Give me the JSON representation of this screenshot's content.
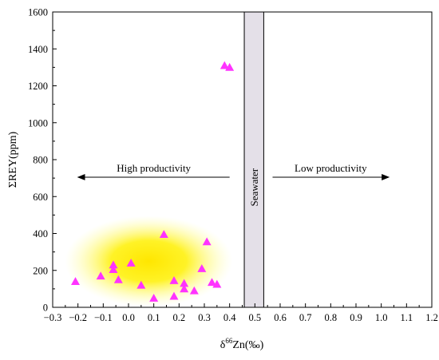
{
  "chart_data": {
    "type": "scatter",
    "title": "",
    "xlabel_prefix": "δ",
    "xlabel_sup": "66",
    "xlabel_main": "Zn(‰)",
    "ylabel": "ΣREY(ppm)",
    "xlim": [
      -0.3,
      1.2
    ],
    "ylim": [
      0,
      1600
    ],
    "x_ticks": [
      -0.3,
      -0.2,
      -0.1,
      0.0,
      0.1,
      0.2,
      0.3,
      0.4,
      0.5,
      0.6,
      0.7,
      0.8,
      0.9,
      1.0,
      1.1,
      1.2
    ],
    "x_tick_labels": [
      "−0.3",
      "−0.2",
      "−0.1",
      "0.0",
      "0.1",
      "0.2",
      "0.3",
      "0.4",
      "0.5",
      "0.6",
      "0.7",
      "0.8",
      "0.9",
      "1.0",
      "1.1",
      "1.2"
    ],
    "y_ticks": [
      0,
      200,
      400,
      600,
      800,
      1000,
      1200,
      1400,
      1600
    ],
    "y_tick_labels": [
      "0",
      "200",
      "400",
      "600",
      "800",
      "1000",
      "1200",
      "1400",
      "1600"
    ],
    "grid": false,
    "marker": "triangle",
    "marker_color": "#ff33ff",
    "points": [
      {
        "x": -0.21,
        "y": 140
      },
      {
        "x": -0.11,
        "y": 170
      },
      {
        "x": -0.06,
        "y": 230
      },
      {
        "x": -0.06,
        "y": 205
      },
      {
        "x": -0.04,
        "y": 150
      },
      {
        "x": 0.01,
        "y": 240
      },
      {
        "x": 0.05,
        "y": 120
      },
      {
        "x": 0.1,
        "y": 50
      },
      {
        "x": 0.14,
        "y": 395
      },
      {
        "x": 0.18,
        "y": 145
      },
      {
        "x": 0.18,
        "y": 60
      },
      {
        "x": 0.22,
        "y": 130
      },
      {
        "x": 0.22,
        "y": 100
      },
      {
        "x": 0.26,
        "y": 90
      },
      {
        "x": 0.29,
        "y": 210
      },
      {
        "x": 0.31,
        "y": 355
      },
      {
        "x": 0.33,
        "y": 135
      },
      {
        "x": 0.35,
        "y": 125
      },
      {
        "x": 0.38,
        "y": 1310
      },
      {
        "x": 0.4,
        "y": 1300
      }
    ],
    "seawater_band": {
      "x_start": 0.458,
      "x_end": 0.535,
      "color": "#e4e0e8",
      "label": "Seawater"
    },
    "highlight": {
      "center_x": 0.08,
      "center_y": 250,
      "color": "#ffe800"
    },
    "annotations": [
      {
        "text": "High productivity",
        "arrow_from": 0.4,
        "arrow_to": -0.2,
        "y": 705
      },
      {
        "text": "Low productivity",
        "arrow_from": 0.57,
        "arrow_to": 1.03,
        "y": 705
      }
    ]
  }
}
